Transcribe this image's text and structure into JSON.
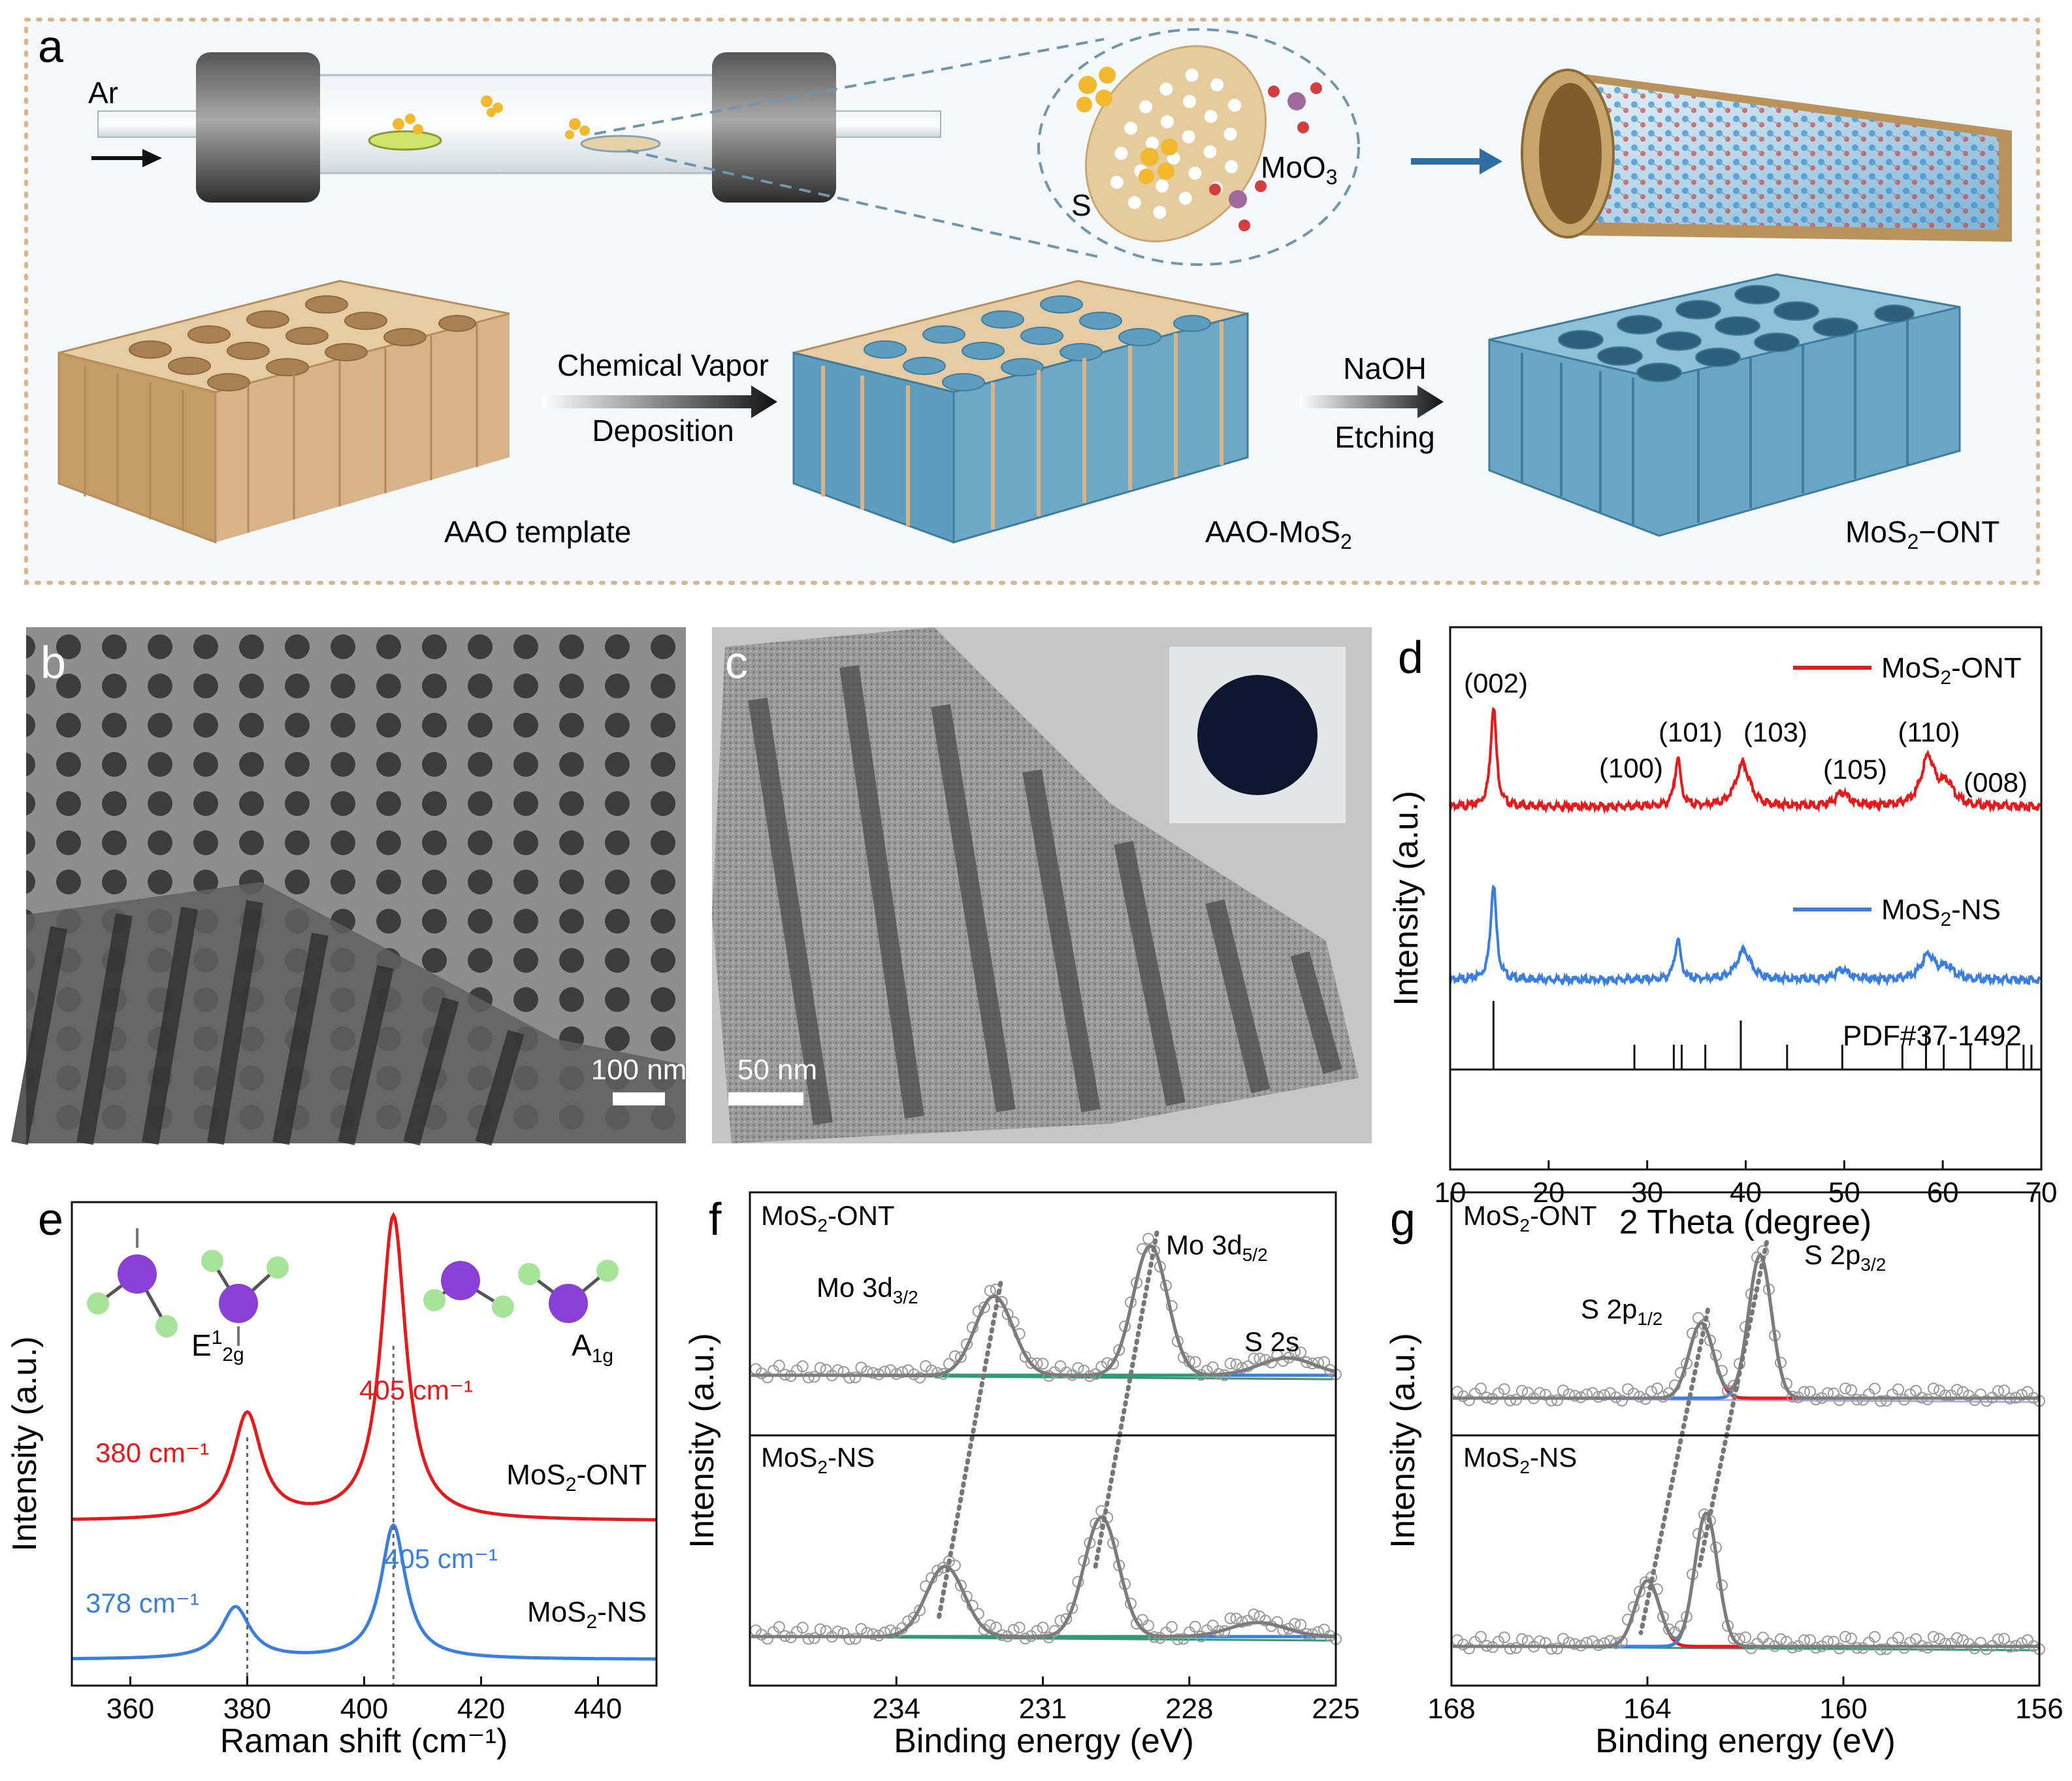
{
  "panel_labels": {
    "a": "a",
    "b": "b",
    "c": "c",
    "d": "d",
    "e": "e",
    "f": "f",
    "g": "g"
  },
  "scheme": {
    "ar_label": "Ar",
    "s_label": "S",
    "moo3_label": "MoO",
    "moo3_sub": "3",
    "step1_line1": "Chemical Vapor",
    "step1_line2": "Deposition",
    "step2_line1": "NaOH",
    "step2_line2": "Etching",
    "label_aao": "AAO template",
    "label_aao_mos2_main": "AAO-MoS",
    "label_aao_mos2_sub": "2",
    "label_ont_pre": "MoS",
    "label_ont_sub": "2",
    "label_ont_post": "−ONT"
  },
  "micrographs": {
    "sem_scale": "100 nm",
    "tem_scale": "50 nm"
  },
  "colors": {
    "red": "#e8191b",
    "blue": "#3a7fe0",
    "green": "#2f9a74",
    "gray": "#7c7c7c",
    "aao_tan": "#dcb98a",
    "mos2_blue": "#5e9dbd",
    "frame_dots": "#d9b48d"
  },
  "chart_data": [
    {
      "panel": "d",
      "type": "line",
      "xlabel": "2 Theta (degree)",
      "ylabel": "Intensity (a.u.)",
      "xlim": [
        10,
        70
      ],
      "xticks": [
        "10",
        "20",
        "30",
        "40",
        "50",
        "60",
        "70"
      ],
      "legend": [
        "MoS2-ONT",
        "MoS2-NS"
      ],
      "legend_labels": [
        {
          "pre": "MoS",
          "sub": "2",
          "post": "-ONT"
        },
        {
          "pre": "MoS",
          "sub": "2",
          "post": "-NS"
        }
      ],
      "reference_label": "PDF#37-1492",
      "reference_lines": [
        14.4,
        28.7,
        32.7,
        33.5,
        35.9,
        39.5,
        44.2,
        49.8,
        55.9,
        58.3,
        60.1,
        62.8,
        66.5,
        68.2,
        69.0
      ],
      "peak_labels": [
        {
          "text": "(002)",
          "x": 14.4
        },
        {
          "text": "(100)",
          "x": 32.7
        },
        {
          "text": "(101)",
          "x": 33.5
        },
        {
          "text": "(103)",
          "x": 39.5
        },
        {
          "text": "(105)",
          "x": 49.8
        },
        {
          "text": "(110)",
          "x": 58.3
        },
        {
          "text": "(008)",
          "x": 60.1
        }
      ],
      "series": [
        {
          "name": "MoS2-ONT",
          "peaks": [
            [
              14.4,
              1.0
            ],
            [
              33.1,
              0.48
            ],
            [
              39.7,
              0.42
            ],
            [
              49.8,
              0.13
            ],
            [
              58.5,
              0.48
            ],
            [
              60.4,
              0.2
            ]
          ]
        },
        {
          "name": "MoS2-NS",
          "peaks": [
            [
              14.4,
              1.0
            ],
            [
              33.1,
              0.42
            ],
            [
              39.8,
              0.3
            ],
            [
              49.8,
              0.1
            ],
            [
              58.5,
              0.25
            ],
            [
              60.4,
              0.12
            ]
          ]
        }
      ]
    },
    {
      "panel": "e",
      "type": "line",
      "xlabel": "Raman shift (cm⁻¹)",
      "ylabel": "Intensity (a.u.)",
      "xlim": [
        350,
        450
      ],
      "xticks": [
        "360",
        "380",
        "400",
        "420",
        "440"
      ],
      "mode_labels": [
        {
          "base": "E",
          "sup": "1",
          "sub": "2g"
        },
        {
          "base": "A",
          "sup": "",
          "sub": "1g"
        }
      ],
      "series": [
        {
          "name": "MoS2-ONT",
          "name_pre": "MoS",
          "name_sub": "2",
          "name_post": "-ONT",
          "peaks": [
            [
              380,
              0.32
            ],
            [
              405,
              0.92
            ]
          ],
          "peak_labels": [
            {
              "text": "380 cm⁻¹",
              "x": 380
            },
            {
              "text": "405 cm⁻¹",
              "x": 405
            }
          ]
        },
        {
          "name": "MoS2-NS",
          "name_pre": "MoS",
          "name_sub": "2",
          "name_post": "-NS",
          "peaks": [
            [
              378,
              0.24
            ],
            [
              405,
              0.62
            ]
          ],
          "peak_labels": [
            {
              "text": "378 cm⁻¹",
              "x": 378
            },
            {
              "text": "405 cm⁻¹",
              "x": 405
            }
          ]
        }
      ]
    },
    {
      "panel": "f",
      "type": "line",
      "xlabel": "Binding energy (eV)",
      "ylabel": "Intensity (a.u.)",
      "xlim": [
        237,
        225
      ],
      "xticks": [
        "234",
        "231",
        "228",
        "225"
      ],
      "peak_labels": [
        {
          "base": "Mo 3d",
          "sub": "3/2"
        },
        {
          "base": "Mo 3d",
          "sub": "5/2"
        },
        {
          "base": "S  2s",
          "sub": ""
        }
      ],
      "subplots": [
        {
          "name": "MoS2-ONT",
          "name_pre": "MoS",
          "name_sub": "2",
          "name_post": "-ONT",
          "components": [
            {
              "name": "Mo 3d3/2",
              "center": 232.0,
              "height": 0.55
            },
            {
              "name": "Mo 3d5/2",
              "center": 228.8,
              "height": 0.9
            },
            {
              "name": "S 2s",
              "center": 226.0,
              "height": 0.12
            }
          ]
        },
        {
          "name": "MoS2-NS",
          "name_pre": "MoS",
          "name_sub": "2",
          "name_post": "-NS",
          "components": [
            {
              "name": "Mo 3d3/2",
              "center": 233.0,
              "height": 0.5
            },
            {
              "name": "Mo 3d5/2",
              "center": 229.8,
              "height": 0.85
            },
            {
              "name": "S 2s",
              "center": 226.6,
              "height": 0.1
            }
          ]
        }
      ]
    },
    {
      "panel": "g",
      "type": "line",
      "xlabel": "Binding energy (eV)",
      "ylabel": "Intensity (a.u.)",
      "xlim": [
        168,
        156
      ],
      "xticks": [
        "168",
        "164",
        "160",
        "156"
      ],
      "peak_labels": [
        {
          "base": "S 2p",
          "sub": "1/2"
        },
        {
          "base": "S 2p",
          "sub": "3/2"
        }
      ],
      "subplots": [
        {
          "name": "MoS2-ONT",
          "name_pre": "MoS",
          "name_sub": "2",
          "name_post": "-ONT",
          "components": [
            {
              "name": "S 2p1/2",
              "center": 162.9,
              "height": 0.5
            },
            {
              "name": "S 2p3/2",
              "center": 161.7,
              "height": 0.95
            }
          ]
        },
        {
          "name": "MoS2-NS",
          "name_pre": "MoS",
          "name_sub": "2",
          "name_post": "-NS",
          "components": [
            {
              "name": "S 2p1/2",
              "center": 164.0,
              "height": 0.42
            },
            {
              "name": "S 2p3/2",
              "center": 162.8,
              "height": 0.85
            }
          ]
        }
      ]
    }
  ]
}
